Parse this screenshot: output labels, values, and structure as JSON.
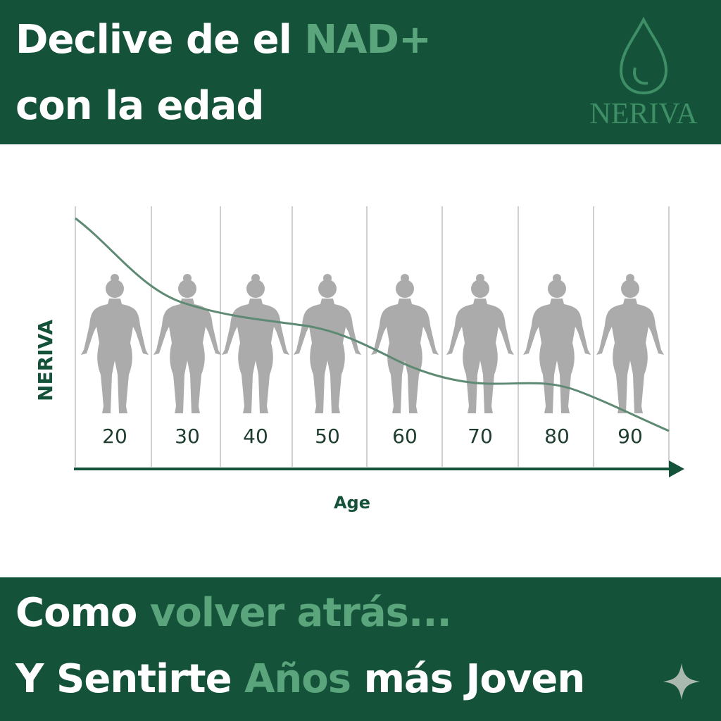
{
  "header": {
    "title_part1": "Declive de el",
    "title_highlight": "NAD+",
    "title_part2": "con la edad",
    "brand": "NERIVA"
  },
  "figure": {
    "y_label": "NERIVA",
    "x_label": "Age",
    "ages": [
      "20",
      "30",
      "40",
      "50",
      "60",
      "70",
      "80",
      "90"
    ]
  },
  "footer": {
    "line1_part1": "Como",
    "line1_highlight": "volver atrás...",
    "line2_part1": "Y Sentirte",
    "line2_highlight": "Años",
    "line2_part2": "más Joven"
  }
}
